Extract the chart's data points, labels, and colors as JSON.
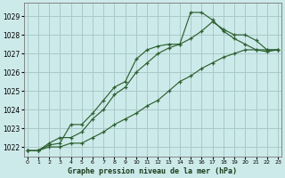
{
  "title": "Graphe pression niveau de la mer (hPa)",
  "bg_color": "#cdeaea",
  "grid_color": "#a8c8c8",
  "line_color": "#2d6030",
  "xlim": [
    -0.3,
    23.3
  ],
  "ylim": [
    1021.5,
    1029.7
  ],
  "xticks": [
    0,
    1,
    2,
    3,
    4,
    5,
    6,
    7,
    8,
    9,
    10,
    11,
    12,
    13,
    14,
    15,
    16,
    17,
    18,
    19,
    20,
    21,
    22,
    23
  ],
  "yticks": [
    1022,
    1023,
    1024,
    1025,
    1026,
    1027,
    1028,
    1029
  ],
  "series1": {
    "x": [
      0,
      1,
      2,
      3,
      4,
      5,
      6,
      7,
      8,
      9,
      10,
      11,
      12,
      13,
      14,
      15,
      16,
      17,
      18,
      19,
      20,
      21,
      22,
      23
    ],
    "y": [
      1021.8,
      1021.8,
      1022.1,
      1022.2,
      1023.2,
      1023.2,
      1023.8,
      1024.5,
      1025.2,
      1025.5,
      1026.7,
      1027.2,
      1027.4,
      1027.5,
      1027.5,
      1029.2,
      1029.2,
      1028.8,
      1028.2,
      1027.8,
      1027.5,
      1027.2,
      1027.1,
      1027.2
    ]
  },
  "series2": {
    "x": [
      0,
      1,
      2,
      3,
      4,
      5,
      6,
      7,
      8,
      9,
      10,
      11,
      12,
      13,
      14,
      15,
      16,
      17,
      18,
      19,
      20,
      21,
      22,
      23
    ],
    "y": [
      1021.8,
      1021.8,
      1022.2,
      1022.5,
      1022.5,
      1022.8,
      1023.5,
      1024.0,
      1024.8,
      1025.2,
      1026.0,
      1026.5,
      1027.0,
      1027.3,
      1027.5,
      1027.8,
      1028.2,
      1028.7,
      1028.3,
      1028.0,
      1028.0,
      1027.7,
      1027.2,
      1027.2
    ]
  },
  "series3": {
    "x": [
      0,
      1,
      2,
      3,
      4,
      5,
      6,
      7,
      8,
      9,
      10,
      11,
      12,
      13,
      14,
      15,
      16,
      17,
      18,
      19,
      20,
      21,
      22,
      23
    ],
    "y": [
      1021.8,
      1021.8,
      1022.0,
      1022.0,
      1022.2,
      1022.2,
      1022.5,
      1022.8,
      1023.2,
      1023.5,
      1023.8,
      1024.2,
      1024.5,
      1025.0,
      1025.5,
      1025.8,
      1026.2,
      1026.5,
      1026.8,
      1027.0,
      1027.2,
      1027.2,
      1027.2,
      1027.2
    ]
  }
}
